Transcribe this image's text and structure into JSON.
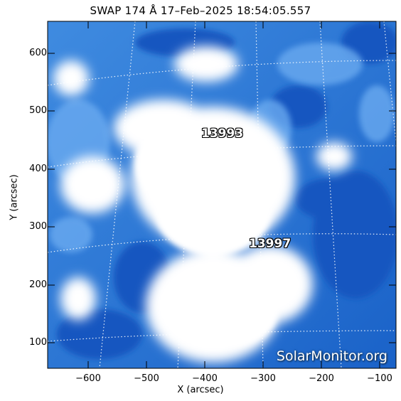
{
  "title": "SWAP 174 Å 17–Feb–2025 18:54:05.557",
  "xlabel": "X (arcsec)",
  "ylabel": "Y (arcsec)",
  "x_ticks": [
    "−600",
    "−500",
    "−400",
    "−300",
    "−200",
    "−100"
  ],
  "y_ticks": [
    "600",
    "500",
    "400",
    "300",
    "200",
    "100"
  ],
  "regions": [
    {
      "id": "13993",
      "label": "13993"
    },
    {
      "id": "13997",
      "label": "13997"
    }
  ],
  "watermark": "SolarMonitor.org",
  "colors": {
    "background": "#ffffff",
    "coronal_blue": "#1f6fd0",
    "bright": "#ffffff"
  }
}
